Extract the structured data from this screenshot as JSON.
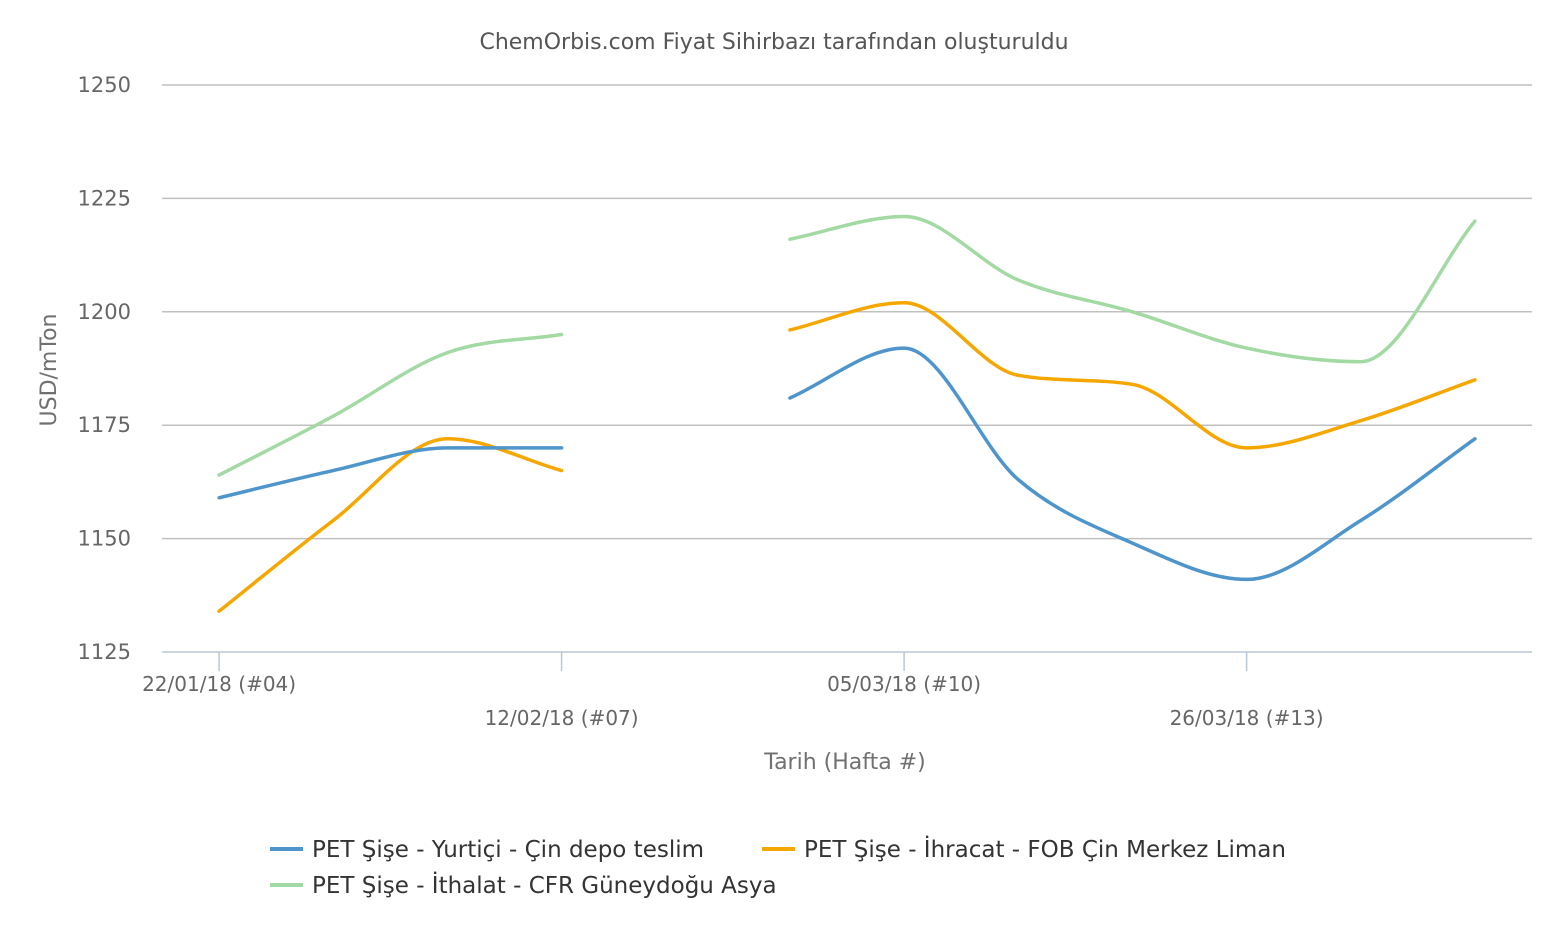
{
  "chart_data": {
    "type": "line",
    "title": "ChemOrbis.com Fiyat Sihirbazı tarafından oluşturuldu",
    "xlabel": "Tarih (Hafta #)",
    "ylabel": "USD/mTon",
    "ylim": [
      1125,
      1250
    ],
    "yticks": [
      1125,
      1150,
      1175,
      1200,
      1225,
      1250
    ],
    "grid": true,
    "legend_position": "bottom",
    "week_range": [
      3.5,
      15.5
    ],
    "xticks": [
      {
        "week": 4,
        "label": "22/01/18 (#04)"
      },
      {
        "week": 7,
        "label": "12/02/18 (#07)"
      },
      {
        "week": 10,
        "label": "05/03/18 (#10)"
      },
      {
        "week": 13,
        "label": "26/03/18 (#13)"
      }
    ],
    "series": [
      {
        "name": "PET Şişe - Yurtiçi - Çin depo teslim",
        "color": "#4e95cb",
        "segments": [
          [
            [
              4,
              1159
            ],
            [
              5,
              1165
            ],
            [
              6,
              1170
            ],
            [
              7,
              1170
            ]
          ],
          [
            [
              9,
              1181
            ],
            [
              10,
              1192
            ],
            [
              11,
              1163
            ],
            [
              12,
              1149
            ],
            [
              13,
              1141
            ],
            [
              14,
              1154
            ],
            [
              15,
              1172
            ]
          ]
        ]
      },
      {
        "name": "PET Şişe - İhracat - FOB Çin Merkez Liman",
        "color": "#f5a700",
        "segments": [
          [
            [
              4,
              1134
            ],
            [
              5,
              1154
            ],
            [
              6,
              1172
            ],
            [
              7,
              1165
            ]
          ],
          [
            [
              9,
              1196
            ],
            [
              10,
              1202
            ],
            [
              11,
              1186
            ],
            [
              12,
              1184
            ],
            [
              13,
              1170
            ],
            [
              14,
              1176
            ],
            [
              15,
              1185
            ]
          ]
        ]
      },
      {
        "name": "PET Şişe - İthalat - CFR Güneydoğu Asya",
        "color": "#a3d9a3",
        "segments": [
          [
            [
              4,
              1164
            ],
            [
              5,
              1177
            ],
            [
              6,
              1191
            ],
            [
              7,
              1195
            ]
          ],
          [
            [
              9,
              1216
            ],
            [
              10,
              1221
            ],
            [
              11,
              1207
            ],
            [
              12,
              1200
            ],
            [
              13,
              1192
            ],
            [
              14,
              1189
            ],
            [
              15,
              1220
            ]
          ]
        ]
      }
    ]
  }
}
